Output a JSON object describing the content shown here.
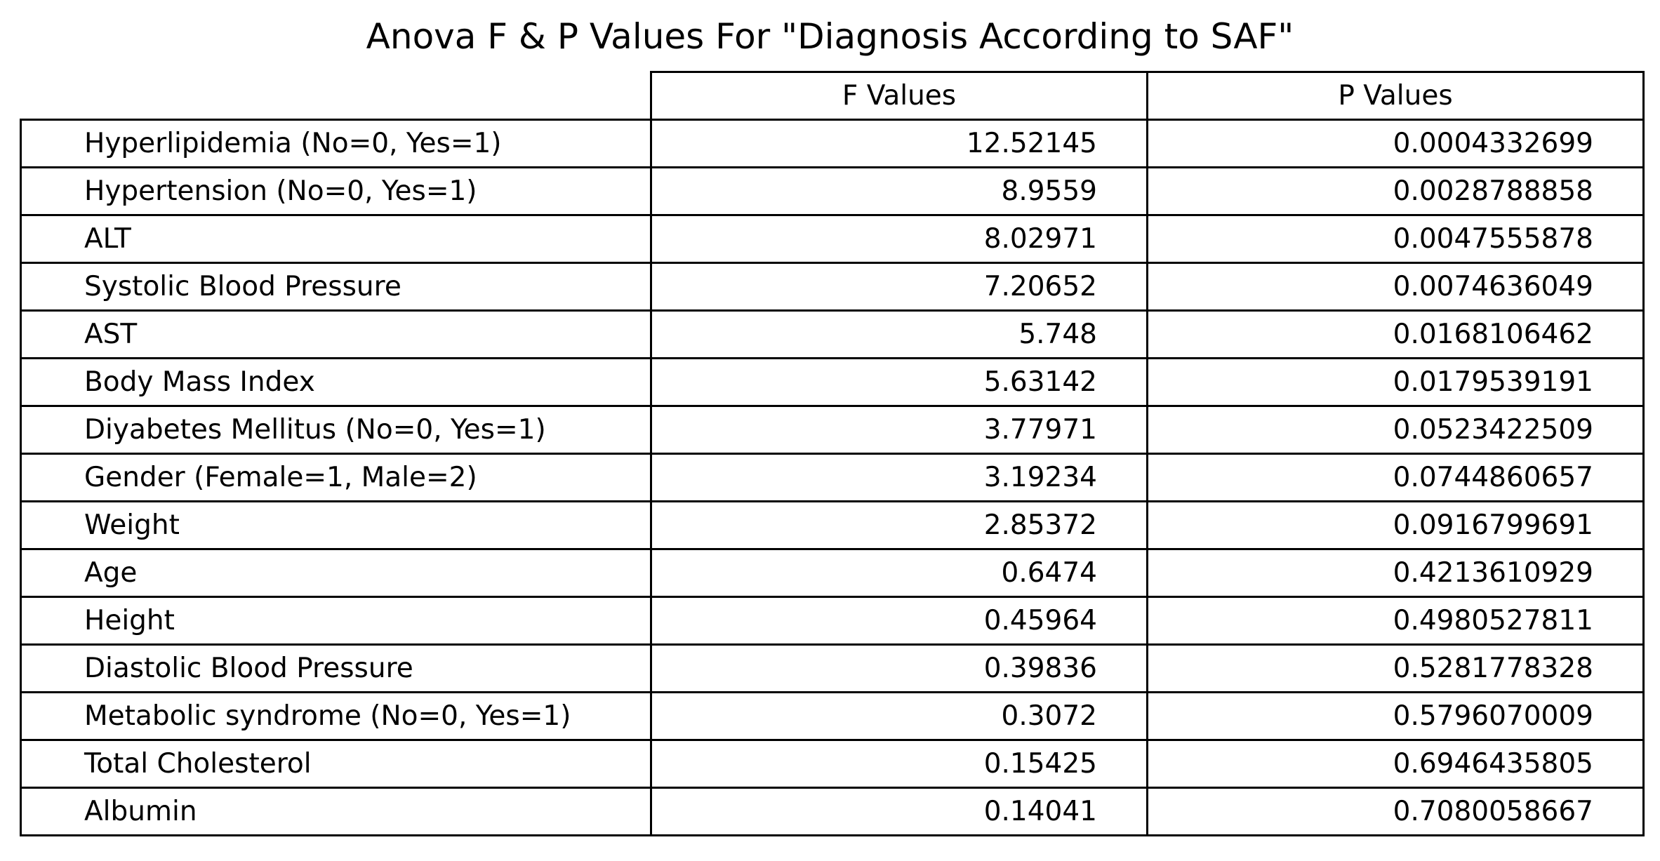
{
  "chart_data": {
    "type": "table",
    "title": "Anova F & P Values For \"Diagnosis According to SAF\"",
    "columns": [
      "F Values",
      "P Values"
    ],
    "rows": [
      {
        "label": "Hyperlipidemia (No=0, Yes=1)",
        "f": "12.52145",
        "p": "0.0004332699"
      },
      {
        "label": "Hypertension (No=0, Yes=1)",
        "f": "8.9559",
        "p": "0.0028788858"
      },
      {
        "label": "ALT",
        "f": "8.02971",
        "p": "0.0047555878"
      },
      {
        "label": "Systolic Blood Pressure",
        "f": "7.20652",
        "p": "0.0074636049"
      },
      {
        "label": "AST",
        "f": "5.748",
        "p": "0.0168106462"
      },
      {
        "label": "Body Mass Index",
        "f": "5.63142",
        "p": "0.0179539191"
      },
      {
        "label": "Diyabetes Mellitus (No=0, Yes=1)",
        "f": "3.77971",
        "p": "0.0523422509"
      },
      {
        "label": "Gender (Female=1, Male=2)",
        "f": "3.19234",
        "p": "0.0744860657"
      },
      {
        "label": "Weight",
        "f": "2.85372",
        "p": "0.0916799691"
      },
      {
        "label": "Age",
        "f": "0.6474",
        "p": "0.4213610929"
      },
      {
        "label": "Height",
        "f": "0.45964",
        "p": "0.4980527811"
      },
      {
        "label": "Diastolic Blood Pressure",
        "f": "0.39836",
        "p": "0.5281778328"
      },
      {
        "label": "Metabolic syndrome (No=0, Yes=1)",
        "f": "0.3072",
        "p": "0.5796070009"
      },
      {
        "label": "Total Cholesterol",
        "f": "0.15425",
        "p": "0.6946435805"
      },
      {
        "label": "Albumin",
        "f": "0.14041",
        "p": "0.7080058667"
      }
    ]
  }
}
